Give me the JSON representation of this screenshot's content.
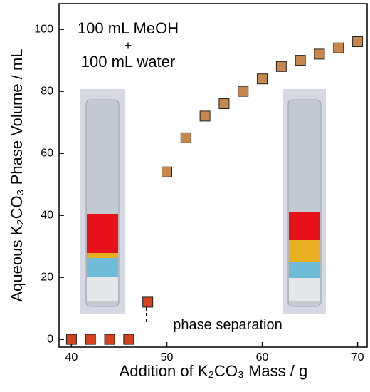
{
  "chart_data": {
    "type": "scatter",
    "x_label": "Addition of K₂CO₃ Mass / g",
    "y_label": "Aqueous K₂CO₃ Phase Volume / mL",
    "annotations": [
      "100 mL MeOH",
      "+",
      "100 mL water",
      "phase separation"
    ],
    "series": [
      {
        "color": "#d4411c",
        "x": [
          40,
          42,
          44,
          46,
          48
        ],
        "values": [
          0,
          0,
          0,
          0,
          12
        ]
      },
      {
        "color": "#c8874c",
        "x": [
          50,
          52,
          54,
          56,
          58,
          60,
          62,
          64,
          66,
          68,
          70
        ],
        "values": [
          54,
          65,
          72,
          76,
          80,
          84,
          88,
          90,
          92,
          94,
          96
        ]
      }
    ],
    "xlim": [
      38.7,
      71
    ],
    "xticks": [
      40,
      50,
      60,
      70
    ],
    "ylim": [
      -2.5,
      108.3
    ],
    "yticks": [
      0,
      20,
      40,
      60,
      80,
      100
    ],
    "grid": false
  }
}
